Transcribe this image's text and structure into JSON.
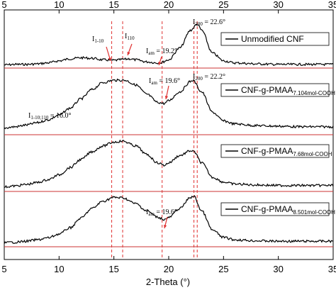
{
  "chart_data": {
    "type": "line",
    "title": "",
    "xlabel": "2-Theta (°)",
    "ylabel": "",
    "xlim": [
      5,
      35
    ],
    "x_ticks": [
      "5",
      "10",
      "15",
      "20",
      "25",
      "30",
      "35"
    ],
    "x_ticks_top": [
      "5",
      "10",
      "15",
      "20",
      "25",
      "30",
      "35"
    ],
    "grid": false,
    "legend_placement": "per-panel top-right",
    "colors": {
      "curve": "#000000",
      "baseline": "#cc3333",
      "guide": "#e03030",
      "arrow": "#e03030"
    },
    "panels": [
      {
        "legend": {
          "main": "Unmodified CNF",
          "sub": ""
        },
        "peaks": [
          {
            "x": 14.8,
            "label_main": "I",
            "label_sub": "1-10"
          },
          {
            "x": 16.4,
            "label_main": "I",
            "label_sub": "110"
          },
          {
            "x": 19.2,
            "label_main": "I",
            "label_sub": "am",
            "label_tail": " = 19.2°"
          },
          {
            "x": 22.6,
            "label_main": "I",
            "label_sub": "200",
            "label_tail": " = 22.6°"
          }
        ],
        "series": [
          {
            "x": [
              5,
              6,
              7,
              8,
              9,
              10,
              11,
              12,
              13,
              14,
              15,
              16,
              16.4,
              17,
              18,
              19,
              19.2,
              20,
              21,
              22,
              22.6,
              23,
              24,
              25,
              26,
              28,
              30,
              32,
              35
            ],
            "values": [
              0.02,
              0.03,
              0.03,
              0.04,
              0.06,
              0.1,
              0.14,
              0.16,
              0.15,
              0.12,
              0.11,
              0.13,
              0.14,
              0.12,
              0.08,
              0.06,
              0.06,
              0.12,
              0.35,
              0.7,
              0.82,
              0.7,
              0.25,
              0.1,
              0.06,
              0.04,
              0.03,
              0.03,
              0.03
            ]
          }
        ]
      },
      {
        "legend": {
          "main": "CNF-g-PMAA",
          "sub": "7.104mol-COOH"
        },
        "peaks": [
          {
            "x": 16.0,
            "label_main": "I",
            "label_sub": "1-10;110",
            "label_tail": " = 16.0°"
          },
          {
            "x": 19.6,
            "label_main": "I",
            "label_sub": "am",
            "label_tail": " = 19.6°"
          },
          {
            "x": 22.2,
            "label_main": "I",
            "label_sub": "200",
            "label_tail": " = 22.2°"
          }
        ],
        "series": [
          {
            "x": [
              5,
              6,
              7,
              8,
              9,
              10,
              11,
              12,
              13,
              14,
              15,
              16,
              17,
              18,
              19,
              19.6,
              20,
              21,
              22,
              22.2,
              23,
              24,
              25,
              26,
              28,
              30,
              32,
              35
            ],
            "values": [
              0.08,
              0.1,
              0.13,
              0.17,
              0.22,
              0.3,
              0.42,
              0.58,
              0.74,
              0.86,
              0.9,
              0.9,
              0.82,
              0.66,
              0.52,
              0.5,
              0.55,
              0.7,
              0.88,
              0.9,
              0.7,
              0.35,
              0.2,
              0.15,
              0.12,
              0.11,
              0.1,
              0.1
            ]
          }
        ]
      },
      {
        "legend": {
          "main": "CNF-g-PMAA",
          "sub": "7.68mol-COOH"
        },
        "peaks": [],
        "series": [
          {
            "x": [
              5,
              6,
              7,
              8,
              9,
              10,
              11,
              12,
              13,
              14,
              15,
              15.8,
              17,
              18,
              19,
              19.6,
              20,
              21,
              22,
              22.3,
              23,
              24,
              25,
              26,
              28,
              30,
              32,
              35
            ],
            "values": [
              0.05,
              0.07,
              0.1,
              0.14,
              0.2,
              0.3,
              0.45,
              0.62,
              0.78,
              0.9,
              0.98,
              1.0,
              0.9,
              0.72,
              0.55,
              0.5,
              0.55,
              0.7,
              0.8,
              0.78,
              0.55,
              0.25,
              0.15,
              0.11,
              0.09,
              0.08,
              0.08,
              0.08
            ]
          }
        ]
      },
      {
        "legend": {
          "main": "CNF-g-PMAA",
          "sub": "8.501mol-COOH"
        },
        "peaks": [
          {
            "x": 19.6,
            "label_main": "I",
            "label_sub": "am",
            "label_tail": " = 19.6°"
          }
        ],
        "series": [
          {
            "x": [
              5,
              6,
              7,
              8,
              9,
              10,
              11,
              12,
              13,
              14,
              15,
              15.8,
              17,
              18,
              19,
              19.6,
              20,
              21,
              22,
              22.3,
              23,
              24,
              25,
              26,
              28,
              30,
              32,
              35
            ],
            "values": [
              0.04,
              0.05,
              0.07,
              0.1,
              0.14,
              0.22,
              0.35,
              0.55,
              0.75,
              0.9,
              0.98,
              0.97,
              0.85,
              0.7,
              0.57,
              0.52,
              0.56,
              0.75,
              0.98,
              1.0,
              0.7,
              0.3,
              0.15,
              0.1,
              0.08,
              0.07,
              0.07,
              0.07
            ]
          }
        ]
      }
    ],
    "guide_lines_x": [
      14.8,
      15.8,
      19.4,
      22.3,
      22.6
    ]
  }
}
